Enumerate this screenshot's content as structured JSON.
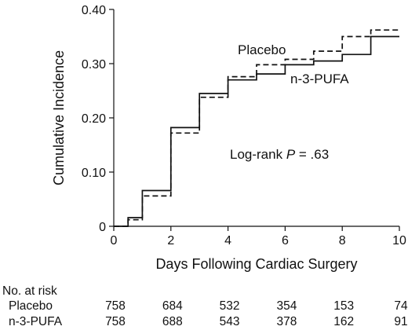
{
  "chart_data": {
    "type": "line",
    "step": true,
    "xlabel": "Days Following Cardiac Surgery",
    "ylabel": "Cumulative Incidence",
    "xlim": [
      0,
      10
    ],
    "ylim": [
      0,
      0.4
    ],
    "x_ticks": [
      0,
      2,
      4,
      6,
      8,
      10
    ],
    "x_tick_labels": [
      "0",
      "2",
      "4",
      "6",
      "8",
      "10"
    ],
    "y_ticks": [
      0,
      0.1,
      0.2,
      0.3,
      0.4
    ],
    "y_tick_labels": [
      "0",
      "0.10",
      "0.20",
      "0.30",
      "0.40"
    ],
    "grid": false,
    "series": [
      {
        "name": "Placebo",
        "line_style": "dashed",
        "color": "#111111",
        "points": [
          [
            0,
            0
          ],
          [
            0.5,
            0
          ],
          [
            0.5,
            0.012
          ],
          [
            1,
            0.012
          ],
          [
            1,
            0.056
          ],
          [
            2,
            0.056
          ],
          [
            2,
            0.172
          ],
          [
            3,
            0.172
          ],
          [
            3,
            0.238
          ],
          [
            4,
            0.238
          ],
          [
            4,
            0.276
          ],
          [
            5,
            0.276
          ],
          [
            5,
            0.298
          ],
          [
            6,
            0.298
          ],
          [
            6,
            0.308
          ],
          [
            7,
            0.308
          ],
          [
            7,
            0.323
          ],
          [
            8,
            0.323
          ],
          [
            8,
            0.35
          ],
          [
            9,
            0.35
          ],
          [
            9,
            0.362
          ],
          [
            10,
            0.362
          ]
        ]
      },
      {
        "name": "n-3-PUFA",
        "line_style": "solid",
        "color": "#111111",
        "points": [
          [
            0,
            0
          ],
          [
            0.5,
            0
          ],
          [
            0.5,
            0.016
          ],
          [
            1,
            0.016
          ],
          [
            1,
            0.066
          ],
          [
            2,
            0.066
          ],
          [
            2,
            0.182
          ],
          [
            3,
            0.182
          ],
          [
            3,
            0.245
          ],
          [
            4,
            0.245
          ],
          [
            4,
            0.27
          ],
          [
            5,
            0.27
          ],
          [
            5,
            0.281
          ],
          [
            6,
            0.281
          ],
          [
            6,
            0.298
          ],
          [
            7,
            0.298
          ],
          [
            7,
            0.305
          ],
          [
            8,
            0.305
          ],
          [
            8,
            0.317
          ],
          [
            9,
            0.317
          ],
          [
            9,
            0.35
          ],
          [
            10,
            0.35
          ]
        ]
      }
    ],
    "annotations": {
      "placebo_label": "Placebo",
      "pufa_label": "n-3-PUFA",
      "logrank_prefix": "Log-rank ",
      "logrank_p": "P",
      "logrank_value": " = .63"
    },
    "risk_table": {
      "title": "No. at risk",
      "rows": [
        {
          "label": "Placebo",
          "values": [
            "758",
            "684",
            "532",
            "354",
            "153",
            "74"
          ]
        },
        {
          "label": "n-3-PUFA",
          "values": [
            "758",
            "688",
            "543",
            "378",
            "162",
            "91"
          ]
        }
      ]
    }
  }
}
